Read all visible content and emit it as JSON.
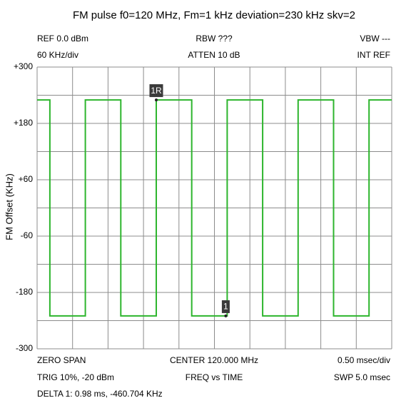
{
  "chart_data": {
    "type": "line",
    "title": "FM pulse f0=120 MHz, Fm=1 kHz deviation=230 kHz skv=2",
    "header": [
      [
        "REF 0.0 dBm",
        "RBW ???",
        "VBW ---"
      ],
      [
        "60 KHz/div",
        "ATTEN 10 dB",
        "INT REF"
      ]
    ],
    "footer": [
      [
        "ZERO SPAN",
        "CENTER 120.000 MHz",
        "0.50 msec/div"
      ],
      [
        "TRIG 10%, -20 dBm",
        "FREQ vs TIME",
        "SWP 5.0 msec"
      ]
    ],
    "note": "DELTA 1: 0.98 ms, -460.704 KHz",
    "ylabel": "FM Offset (KHz)",
    "color": "#2db52d",
    "x": [
      0,
      0.18,
      0.18,
      0.68,
      0.68,
      1.18,
      1.18,
      1.68,
      1.68,
      2.18,
      2.18,
      2.68,
      2.68,
      3.18,
      3.18,
      3.68,
      3.68,
      4.18,
      4.18,
      4.68,
      4.68,
      5
    ],
    "values": [
      230,
      230,
      -230,
      -230,
      230,
      230,
      -230,
      -230,
      230,
      230,
      -230,
      -230,
      230,
      230,
      -230,
      -230,
      230,
      230,
      -230,
      -230,
      230,
      230
    ],
    "xlim": [
      0,
      5
    ],
    "ylim": [
      -300,
      300
    ],
    "yticks": [
      {
        "value": 300,
        "label": "+300"
      },
      {
        "value": 180,
        "label": "+180"
      },
      {
        "value": 60,
        "label": "+60"
      },
      -60,
      -180,
      -300
    ],
    "markers": [
      {
        "label": "1R",
        "x": 1.68,
        "y": 230
      },
      {
        "label": "1",
        "x": 2.66,
        "y": -230
      }
    ]
  }
}
